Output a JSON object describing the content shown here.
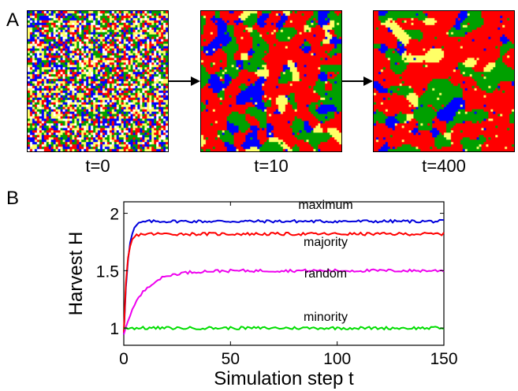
{
  "panel_a": {
    "label": "A",
    "snapshots": [
      {
        "label": "t=0",
        "noise": "random"
      },
      {
        "label": "t=10",
        "noise": "domains-small"
      },
      {
        "label": "t=400",
        "noise": "domains-large"
      }
    ],
    "colors": [
      "#ff0000",
      "#00a000",
      "#0000ff",
      "#ffff66",
      "#ffffff"
    ]
  },
  "panel_b": {
    "label": "B"
  },
  "chart_data": {
    "type": "line",
    "xlabel": "Simulation step t",
    "ylabel": "Harvest H",
    "xlim": [
      0,
      150
    ],
    "ylim": [
      0.85,
      2.1
    ],
    "xticks": [
      0,
      50,
      100,
      150
    ],
    "yticks": [
      1,
      1.5,
      2
    ],
    "ytick_labels": [
      "1",
      "1.5",
      "2"
    ],
    "series": [
      {
        "name": "maximum",
        "color": "#0000dd",
        "start": 0.95,
        "plateau": 1.93,
        "rate": 0.55
      },
      {
        "name": "majority",
        "color": "#ff0000",
        "start": 0.95,
        "plateau": 1.82,
        "rate": 0.7
      },
      {
        "name": "random",
        "color": "#ee00ee",
        "start": 0.95,
        "plateau": 1.5,
        "rate": 0.12
      },
      {
        "name": "minority",
        "color": "#00dd00",
        "start": 1.0,
        "plateau": 1.0,
        "rate": 1.0
      }
    ]
  }
}
